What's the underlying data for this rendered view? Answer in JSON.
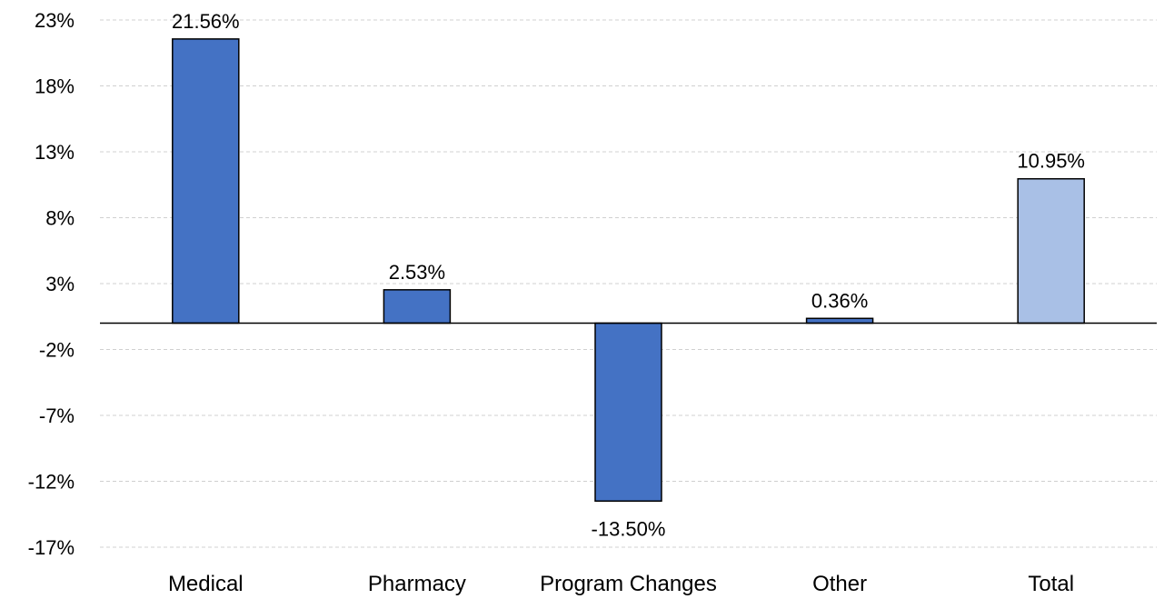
{
  "chart_data": {
    "type": "bar",
    "categories": [
      "Medical",
      "Pharmacy",
      "Program Changes",
      "Other",
      "Total"
    ],
    "values": [
      21.56,
      2.53,
      -13.5,
      0.36,
      10.95
    ],
    "data_labels": [
      "21.56%",
      "2.53%",
      "-13.50%",
      "0.36%",
      "10.95%"
    ],
    "y_ticks": [
      23,
      18,
      13,
      8,
      3,
      -2,
      -7,
      -12,
      -17
    ],
    "y_tick_labels": [
      "23%",
      "18%",
      "13%",
      "8%",
      "3%",
      "-2%",
      "-7%",
      "-12%",
      "-17%"
    ],
    "ylim": [
      -17,
      23
    ],
    "grid": true,
    "legend": "none",
    "title": "",
    "xlabel": "",
    "ylabel": "",
    "colors": {
      "bar": "#4472C4",
      "total_bar": "#A9C0E6",
      "gridline": "#d0d0d0",
      "axis": "#000000"
    }
  }
}
